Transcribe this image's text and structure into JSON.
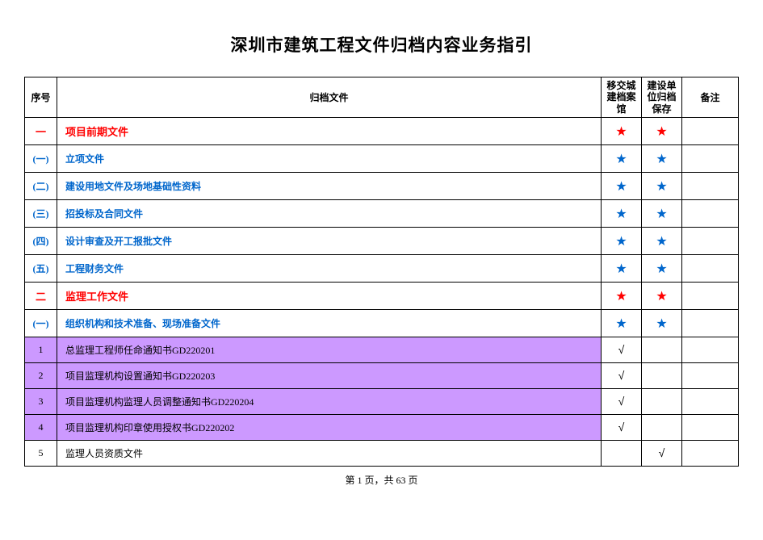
{
  "title": "深圳市建筑工程文件归档内容业务指引",
  "headers": {
    "seq": "序号",
    "file": "归档文件",
    "col1": "移交城建档案馆",
    "col2": "建设单位归档保存",
    "remark": "备注"
  },
  "marks": {
    "star": "★",
    "check": "√"
  },
  "colors": {
    "cat_red": "#ff0000",
    "cat_blue": "#0066cc",
    "highlight": "#cc99ff",
    "border": "#000000",
    "text": "#000000",
    "bg": "#ffffff"
  },
  "rows": [
    {
      "seq": "一",
      "file": "项目前期文件",
      "m1": "star",
      "m2": "star",
      "style": "red",
      "hl": false
    },
    {
      "seq": "(一)",
      "file": "立项文件",
      "m1": "star",
      "m2": "star",
      "style": "blue",
      "hl": false
    },
    {
      "seq": "(二)",
      "file": "建设用地文件及场地基础性资料",
      "m1": "star",
      "m2": "star",
      "style": "blue",
      "hl": false
    },
    {
      "seq": "(三)",
      "file": "招投标及合同文件",
      "m1": "star",
      "m2": "star",
      "style": "blue",
      "hl": false
    },
    {
      "seq": "(四)",
      "file": "设计审查及开工报批文件",
      "m1": "star",
      "m2": "star",
      "style": "blue",
      "hl": false
    },
    {
      "seq": "(五)",
      "file": "工程财务文件",
      "m1": "star",
      "m2": "star",
      "style": "blue",
      "hl": false
    },
    {
      "seq": "二",
      "file": "监理工作文件",
      "m1": "star",
      "m2": "star",
      "style": "red",
      "hl": false
    },
    {
      "seq": "(一)",
      "file": "组织机构和技术准备、现场准备文件",
      "m1": "star",
      "m2": "star",
      "style": "blue",
      "hl": false
    },
    {
      "seq": "1",
      "file": "总监理工程师任命通知书GD220201",
      "m1": "check",
      "m2": "",
      "style": "item",
      "hl": true
    },
    {
      "seq": "2",
      "file": "项目监理机构设置通知书GD220203",
      "m1": "check",
      "m2": "",
      "style": "item",
      "hl": true
    },
    {
      "seq": "3",
      "file": "项目监理机构监理人员调整通知书GD220204",
      "m1": "check",
      "m2": "",
      "style": "item",
      "hl": true
    },
    {
      "seq": "4",
      "file": "项目监理机构印章使用授权书GD220202",
      "m1": "check",
      "m2": "",
      "style": "item",
      "hl": true
    },
    {
      "seq": "5",
      "file": "监理人员资质文件",
      "m1": "",
      "m2": "check",
      "style": "item",
      "hl": false
    }
  ],
  "footer": {
    "prefix": "第 ",
    "page": "1",
    "mid": " 页，共 ",
    "total": "63",
    "suffix": " 页"
  }
}
